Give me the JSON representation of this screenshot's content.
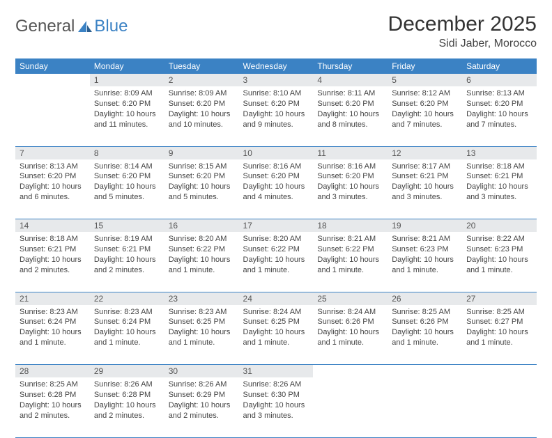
{
  "brand": {
    "word1": "General",
    "word2": "Blue"
  },
  "title": "December 2025",
  "location": "Sidi Jaber, Morocco",
  "colors": {
    "header_bg": "#3b82c4",
    "header_text": "#ffffff",
    "daynum_bg": "#e7e9eb",
    "rule": "#3b82c4",
    "page_bg": "#ffffff",
    "body_text": "#444444"
  },
  "weekdays": [
    "Sunday",
    "Monday",
    "Tuesday",
    "Wednesday",
    "Thursday",
    "Friday",
    "Saturday"
  ],
  "weeks": [
    [
      null,
      {
        "n": "1",
        "sr": "8:09 AM",
        "ss": "6:20 PM",
        "dl": "10 hours and 11 minutes."
      },
      {
        "n": "2",
        "sr": "8:09 AM",
        "ss": "6:20 PM",
        "dl": "10 hours and 10 minutes."
      },
      {
        "n": "3",
        "sr": "8:10 AM",
        "ss": "6:20 PM",
        "dl": "10 hours and 9 minutes."
      },
      {
        "n": "4",
        "sr": "8:11 AM",
        "ss": "6:20 PM",
        "dl": "10 hours and 8 minutes."
      },
      {
        "n": "5",
        "sr": "8:12 AM",
        "ss": "6:20 PM",
        "dl": "10 hours and 7 minutes."
      },
      {
        "n": "6",
        "sr": "8:13 AM",
        "ss": "6:20 PM",
        "dl": "10 hours and 7 minutes."
      }
    ],
    [
      {
        "n": "7",
        "sr": "8:13 AM",
        "ss": "6:20 PM",
        "dl": "10 hours and 6 minutes."
      },
      {
        "n": "8",
        "sr": "8:14 AM",
        "ss": "6:20 PM",
        "dl": "10 hours and 5 minutes."
      },
      {
        "n": "9",
        "sr": "8:15 AM",
        "ss": "6:20 PM",
        "dl": "10 hours and 5 minutes."
      },
      {
        "n": "10",
        "sr": "8:16 AM",
        "ss": "6:20 PM",
        "dl": "10 hours and 4 minutes."
      },
      {
        "n": "11",
        "sr": "8:16 AM",
        "ss": "6:20 PM",
        "dl": "10 hours and 3 minutes."
      },
      {
        "n": "12",
        "sr": "8:17 AM",
        "ss": "6:21 PM",
        "dl": "10 hours and 3 minutes."
      },
      {
        "n": "13",
        "sr": "8:18 AM",
        "ss": "6:21 PM",
        "dl": "10 hours and 3 minutes."
      }
    ],
    [
      {
        "n": "14",
        "sr": "8:18 AM",
        "ss": "6:21 PM",
        "dl": "10 hours and 2 minutes."
      },
      {
        "n": "15",
        "sr": "8:19 AM",
        "ss": "6:21 PM",
        "dl": "10 hours and 2 minutes."
      },
      {
        "n": "16",
        "sr": "8:20 AM",
        "ss": "6:22 PM",
        "dl": "10 hours and 1 minute."
      },
      {
        "n": "17",
        "sr": "8:20 AM",
        "ss": "6:22 PM",
        "dl": "10 hours and 1 minute."
      },
      {
        "n": "18",
        "sr": "8:21 AM",
        "ss": "6:22 PM",
        "dl": "10 hours and 1 minute."
      },
      {
        "n": "19",
        "sr": "8:21 AM",
        "ss": "6:23 PM",
        "dl": "10 hours and 1 minute."
      },
      {
        "n": "20",
        "sr": "8:22 AM",
        "ss": "6:23 PM",
        "dl": "10 hours and 1 minute."
      }
    ],
    [
      {
        "n": "21",
        "sr": "8:23 AM",
        "ss": "6:24 PM",
        "dl": "10 hours and 1 minute."
      },
      {
        "n": "22",
        "sr": "8:23 AM",
        "ss": "6:24 PM",
        "dl": "10 hours and 1 minute."
      },
      {
        "n": "23",
        "sr": "8:23 AM",
        "ss": "6:25 PM",
        "dl": "10 hours and 1 minute."
      },
      {
        "n": "24",
        "sr": "8:24 AM",
        "ss": "6:25 PM",
        "dl": "10 hours and 1 minute."
      },
      {
        "n": "25",
        "sr": "8:24 AM",
        "ss": "6:26 PM",
        "dl": "10 hours and 1 minute."
      },
      {
        "n": "26",
        "sr": "8:25 AM",
        "ss": "6:26 PM",
        "dl": "10 hours and 1 minute."
      },
      {
        "n": "27",
        "sr": "8:25 AM",
        "ss": "6:27 PM",
        "dl": "10 hours and 1 minute."
      }
    ],
    [
      {
        "n": "28",
        "sr": "8:25 AM",
        "ss": "6:28 PM",
        "dl": "10 hours and 2 minutes."
      },
      {
        "n": "29",
        "sr": "8:26 AM",
        "ss": "6:28 PM",
        "dl": "10 hours and 2 minutes."
      },
      {
        "n": "30",
        "sr": "8:26 AM",
        "ss": "6:29 PM",
        "dl": "10 hours and 2 minutes."
      },
      {
        "n": "31",
        "sr": "8:26 AM",
        "ss": "6:30 PM",
        "dl": "10 hours and 3 minutes."
      },
      null,
      null,
      null
    ]
  ],
  "labels": {
    "sunrise": "Sunrise:",
    "sunset": "Sunset:",
    "daylight": "Daylight:"
  }
}
